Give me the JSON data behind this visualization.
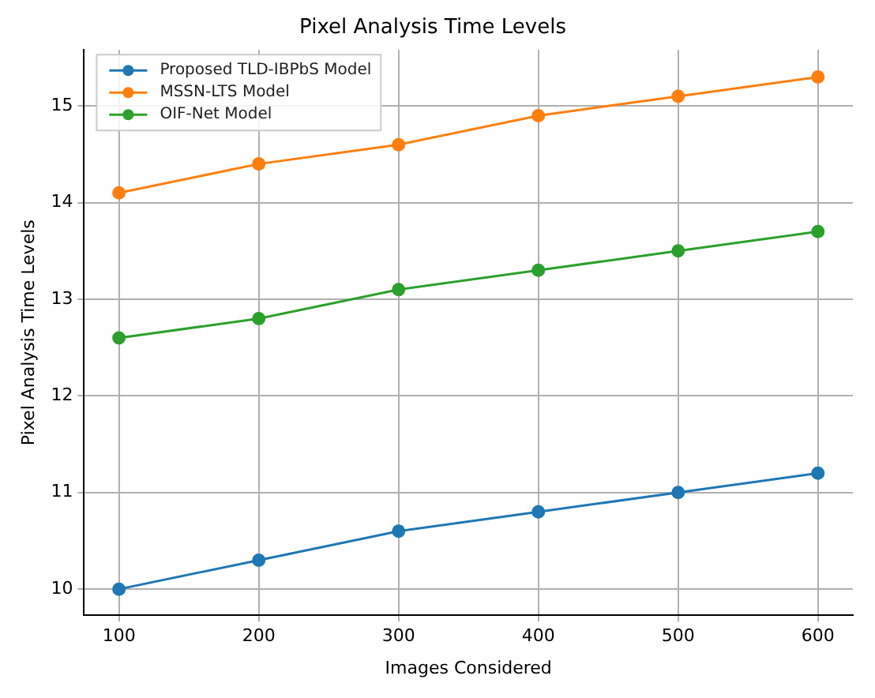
{
  "chart_data": {
    "type": "line",
    "title": "Pixel Analysis Time Levels",
    "xlabel": "Images Considered",
    "ylabel": "Pixel Analysis Time Levels",
    "x": [
      100,
      200,
      300,
      400,
      500,
      600
    ],
    "series": [
      {
        "name": "Proposed TLD-IBPbS Model",
        "color": "#1f77b4",
        "values": [
          10.0,
          10.3,
          10.6,
          10.8,
          11.0,
          11.2
        ]
      },
      {
        "name": "MSSN-LTS Model",
        "color": "#ff7f0e",
        "values": [
          14.1,
          14.4,
          14.6,
          14.9,
          15.1,
          15.3
        ]
      },
      {
        "name": "OIF-Net Model",
        "color": "#2ca02c",
        "values": [
          12.6,
          12.8,
          13.1,
          13.3,
          13.5,
          13.7
        ]
      }
    ],
    "xlim": [
      75,
      625
    ],
    "ylim": [
      9.73,
      15.58
    ],
    "xticks": [
      100,
      200,
      300,
      400,
      500,
      600
    ],
    "yticks": [
      10,
      11,
      12,
      13,
      14,
      15
    ],
    "grid": true,
    "legend": "top left",
    "marker": "circle",
    "line_style": "solid"
  }
}
